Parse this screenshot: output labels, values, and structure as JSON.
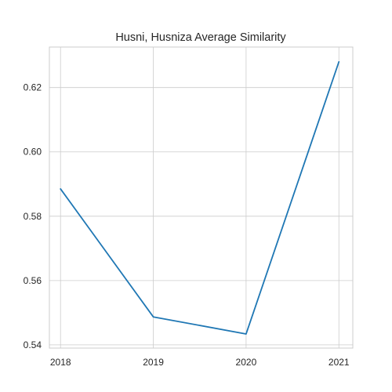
{
  "chart_data": {
    "type": "line",
    "title": "Husni, Husniza Average Similarity",
    "xlabel": "",
    "ylabel": "",
    "x": [
      "2018",
      "2019",
      "2020",
      "2021"
    ],
    "series": [
      {
        "values": [
          0.5885,
          0.5487,
          0.5434,
          0.628
        ]
      }
    ],
    "xlim": [
      2017.88,
      2021.15
    ],
    "ylim": [
      0.539,
      0.6326
    ],
    "yticks": [
      "0.54",
      "0.56",
      "0.58",
      "0.60",
      "0.62"
    ],
    "grid": true,
    "line_color": "#1f77b4"
  }
}
